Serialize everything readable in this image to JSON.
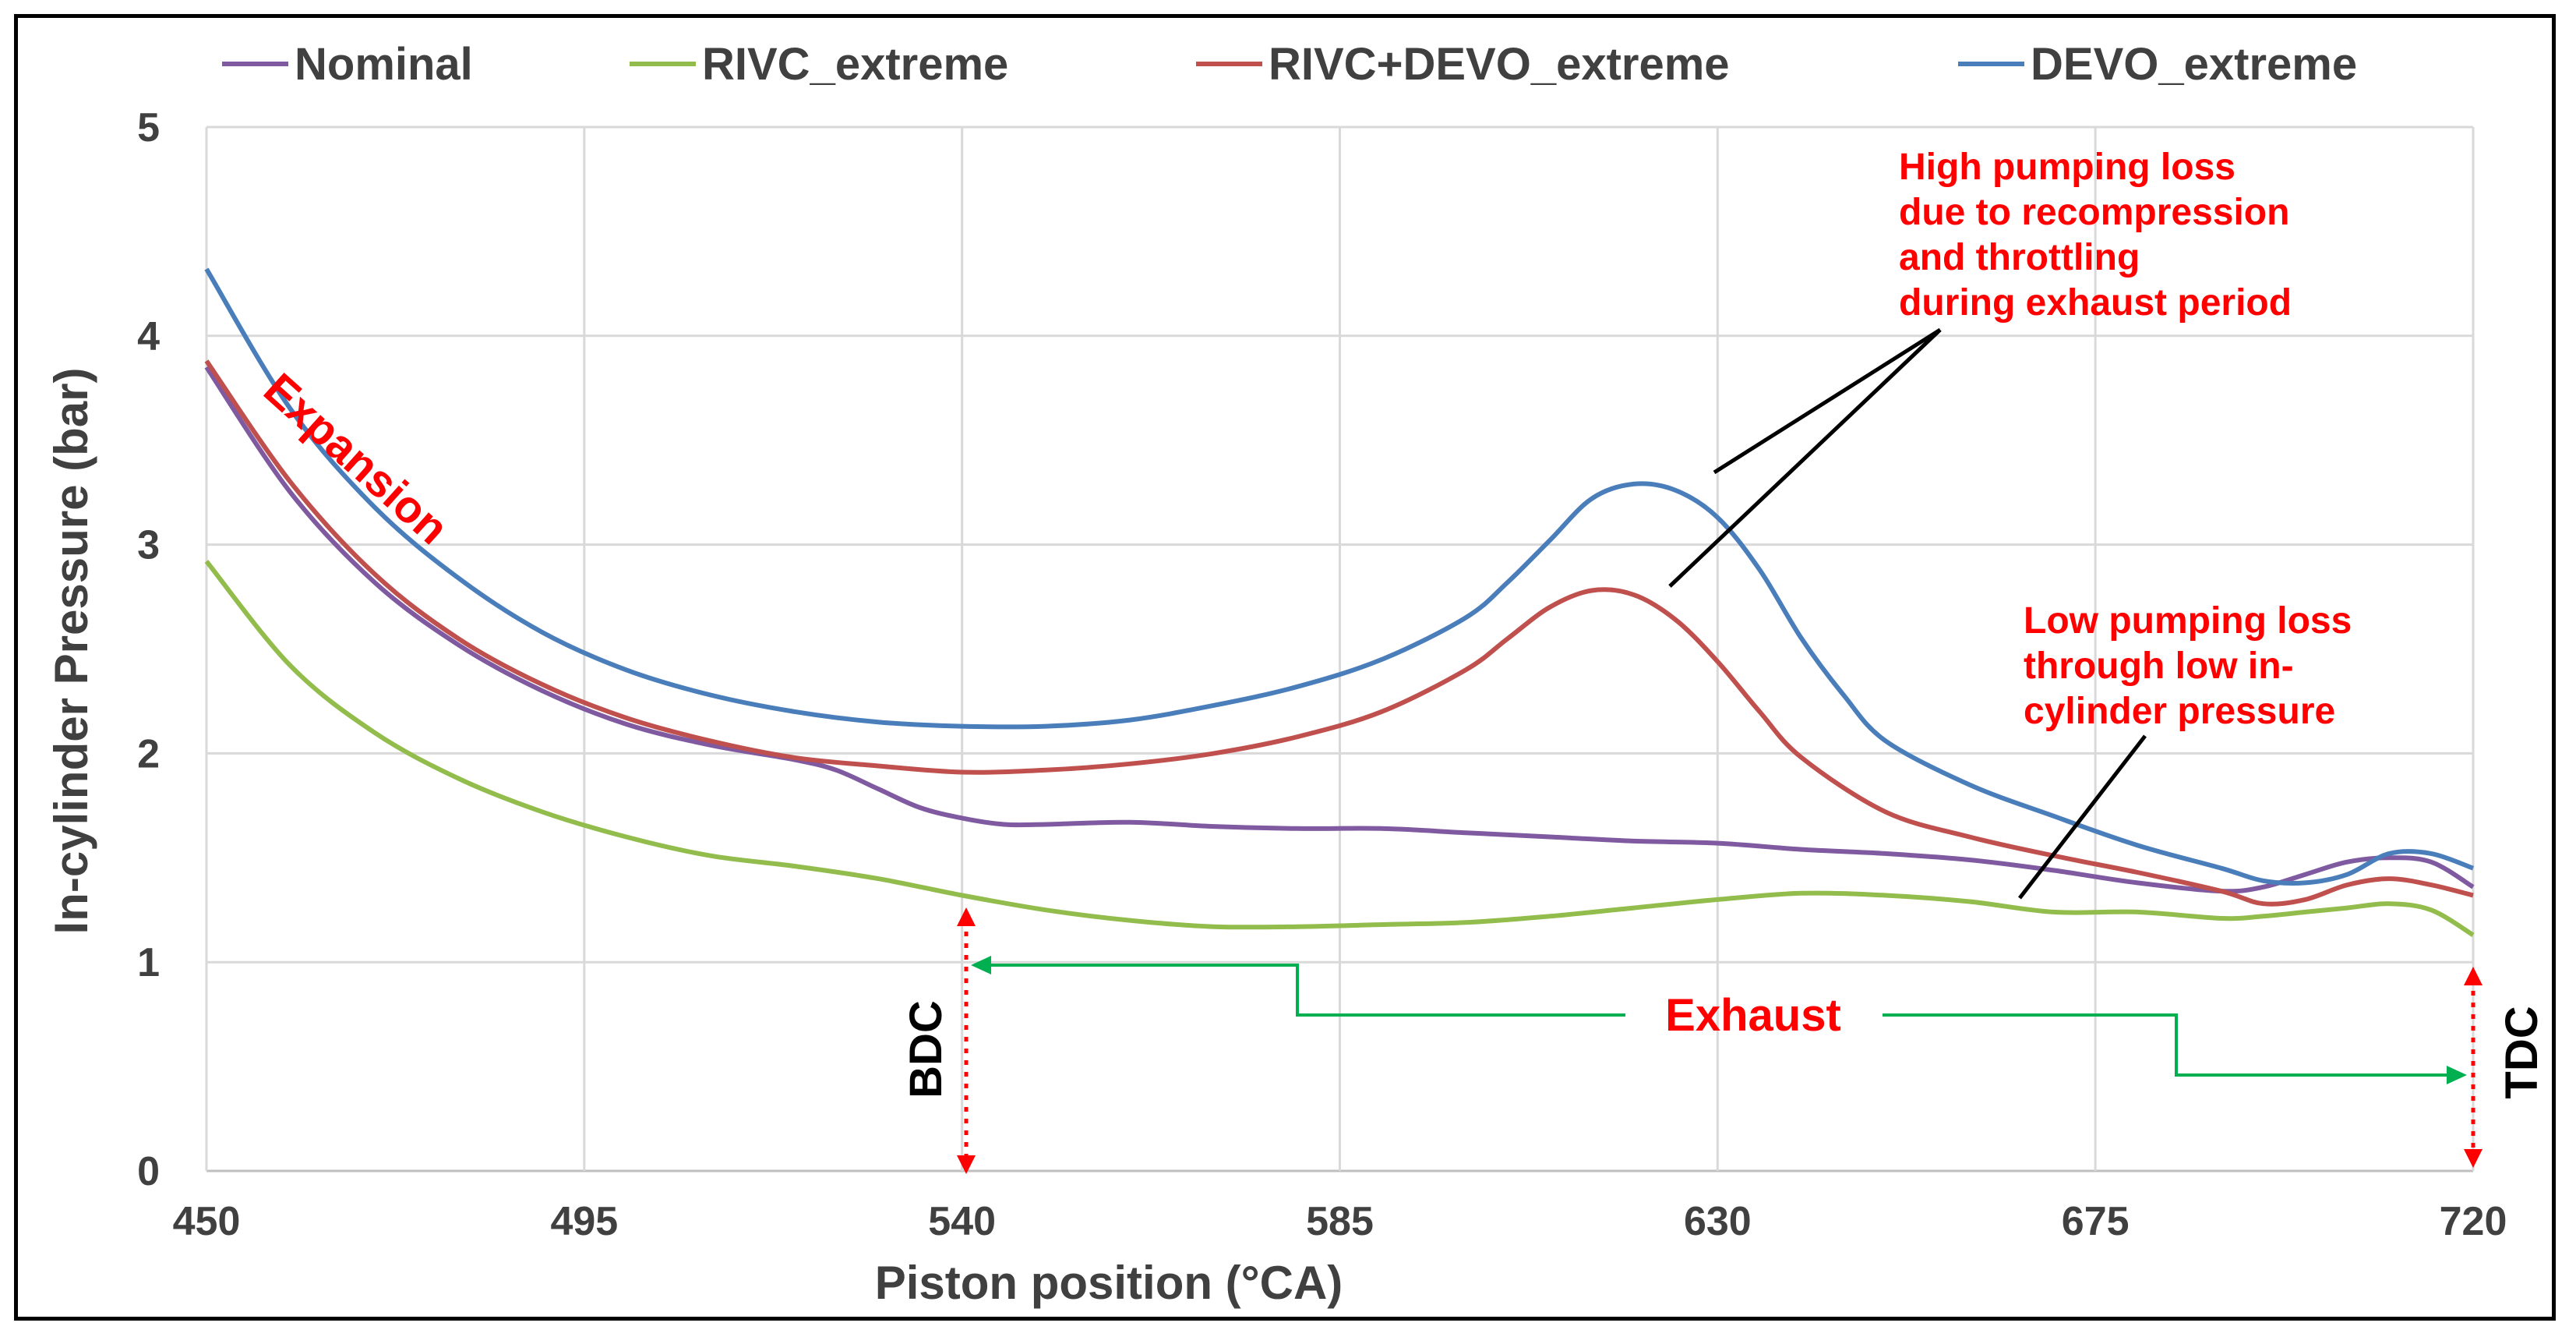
{
  "chart_data": {
    "type": "line",
    "title": "",
    "xlabel": "Piston position (°CA)",
    "ylabel": "In-cylinder Pressure  (bar)",
    "xlim": [
      450,
      720
    ],
    "ylim": [
      0,
      5
    ],
    "xticks": [
      "450",
      "495",
      "540",
      "585",
      "630",
      "675",
      "720"
    ],
    "yticks": [
      "0",
      "1",
      "2",
      "3",
      "4",
      "5"
    ],
    "grid": true,
    "legend_position": "top",
    "series": [
      {
        "name": "Nominal",
        "color": "#7f5aa0",
        "x": [
          450,
          460,
          470,
          480,
          490,
          500,
          510,
          520,
          525,
          530,
          535,
          540,
          545,
          550,
          560,
          570,
          580,
          590,
          600,
          610,
          620,
          630,
          640,
          650,
          660,
          670,
          680,
          690,
          695,
          700,
          705,
          710,
          715,
          720
        ],
        "y": [
          3.85,
          3.25,
          2.82,
          2.52,
          2.3,
          2.14,
          2.04,
          1.97,
          1.92,
          1.83,
          1.74,
          1.69,
          1.66,
          1.66,
          1.67,
          1.65,
          1.64,
          1.64,
          1.62,
          1.6,
          1.58,
          1.57,
          1.54,
          1.52,
          1.49,
          1.44,
          1.38,
          1.34,
          1.36,
          1.42,
          1.48,
          1.5,
          1.48,
          1.36
        ]
      },
      {
        "name": "RIVC_extreme",
        "color": "#92bc4b",
        "x": [
          450,
          460,
          470,
          480,
          490,
          500,
          510,
          520,
          530,
          540,
          550,
          560,
          570,
          580,
          590,
          600,
          610,
          620,
          630,
          640,
          650,
          660,
          670,
          680,
          690,
          695,
          700,
          705,
          710,
          715,
          720
        ],
        "y": [
          2.92,
          2.42,
          2.1,
          1.88,
          1.72,
          1.6,
          1.51,
          1.46,
          1.4,
          1.32,
          1.25,
          1.2,
          1.17,
          1.17,
          1.18,
          1.19,
          1.22,
          1.26,
          1.3,
          1.33,
          1.32,
          1.29,
          1.24,
          1.24,
          1.21,
          1.22,
          1.24,
          1.26,
          1.28,
          1.25,
          1.13
        ]
      },
      {
        "name": "RIVC+DEVO_extreme",
        "color": "#c0504d",
        "x": [
          450,
          460,
          470,
          480,
          490,
          500,
          510,
          520,
          530,
          540,
          550,
          560,
          570,
          580,
          590,
          600,
          605,
          610,
          615,
          620,
          625,
          630,
          635,
          640,
          650,
          660,
          670,
          680,
          690,
          695,
          700,
          705,
          710,
          715,
          720
        ],
        "y": [
          3.88,
          3.3,
          2.86,
          2.55,
          2.33,
          2.17,
          2.06,
          1.98,
          1.94,
          1.91,
          1.92,
          1.95,
          2.0,
          2.08,
          2.2,
          2.4,
          2.55,
          2.7,
          2.78,
          2.76,
          2.64,
          2.44,
          2.2,
          1.98,
          1.72,
          1.6,
          1.51,
          1.43,
          1.34,
          1.28,
          1.3,
          1.37,
          1.4,
          1.37,
          1.32
        ]
      },
      {
        "name": "DEVO_extreme",
        "color": "#4a7ebb",
        "x": [
          450,
          460,
          470,
          480,
          490,
          500,
          510,
          520,
          530,
          540,
          550,
          560,
          570,
          580,
          590,
          600,
          605,
          610,
          615,
          620,
          625,
          630,
          635,
          640,
          645,
          650,
          660,
          670,
          680,
          690,
          695,
          700,
          705,
          710,
          715,
          720
        ],
        "y": [
          4.32,
          3.65,
          3.18,
          2.84,
          2.58,
          2.4,
          2.28,
          2.2,
          2.15,
          2.13,
          2.13,
          2.16,
          2.23,
          2.32,
          2.45,
          2.65,
          2.82,
          3.02,
          3.22,
          3.29,
          3.26,
          3.13,
          2.88,
          2.55,
          2.28,
          2.06,
          1.85,
          1.7,
          1.56,
          1.45,
          1.39,
          1.38,
          1.42,
          1.52,
          1.52,
          1.45
        ]
      }
    ],
    "annotations": {
      "expansion": "Expansion",
      "high_loss": [
        "High pumping loss",
        "due to recompression",
        "and throttling",
        "during exhaust period"
      ],
      "low_loss": [
        "Low pumping loss",
        "through low in-",
        "cylinder pressure"
      ],
      "exhaust": "Exhaust",
      "bdc": "BDC",
      "tdc": "TDC"
    }
  }
}
